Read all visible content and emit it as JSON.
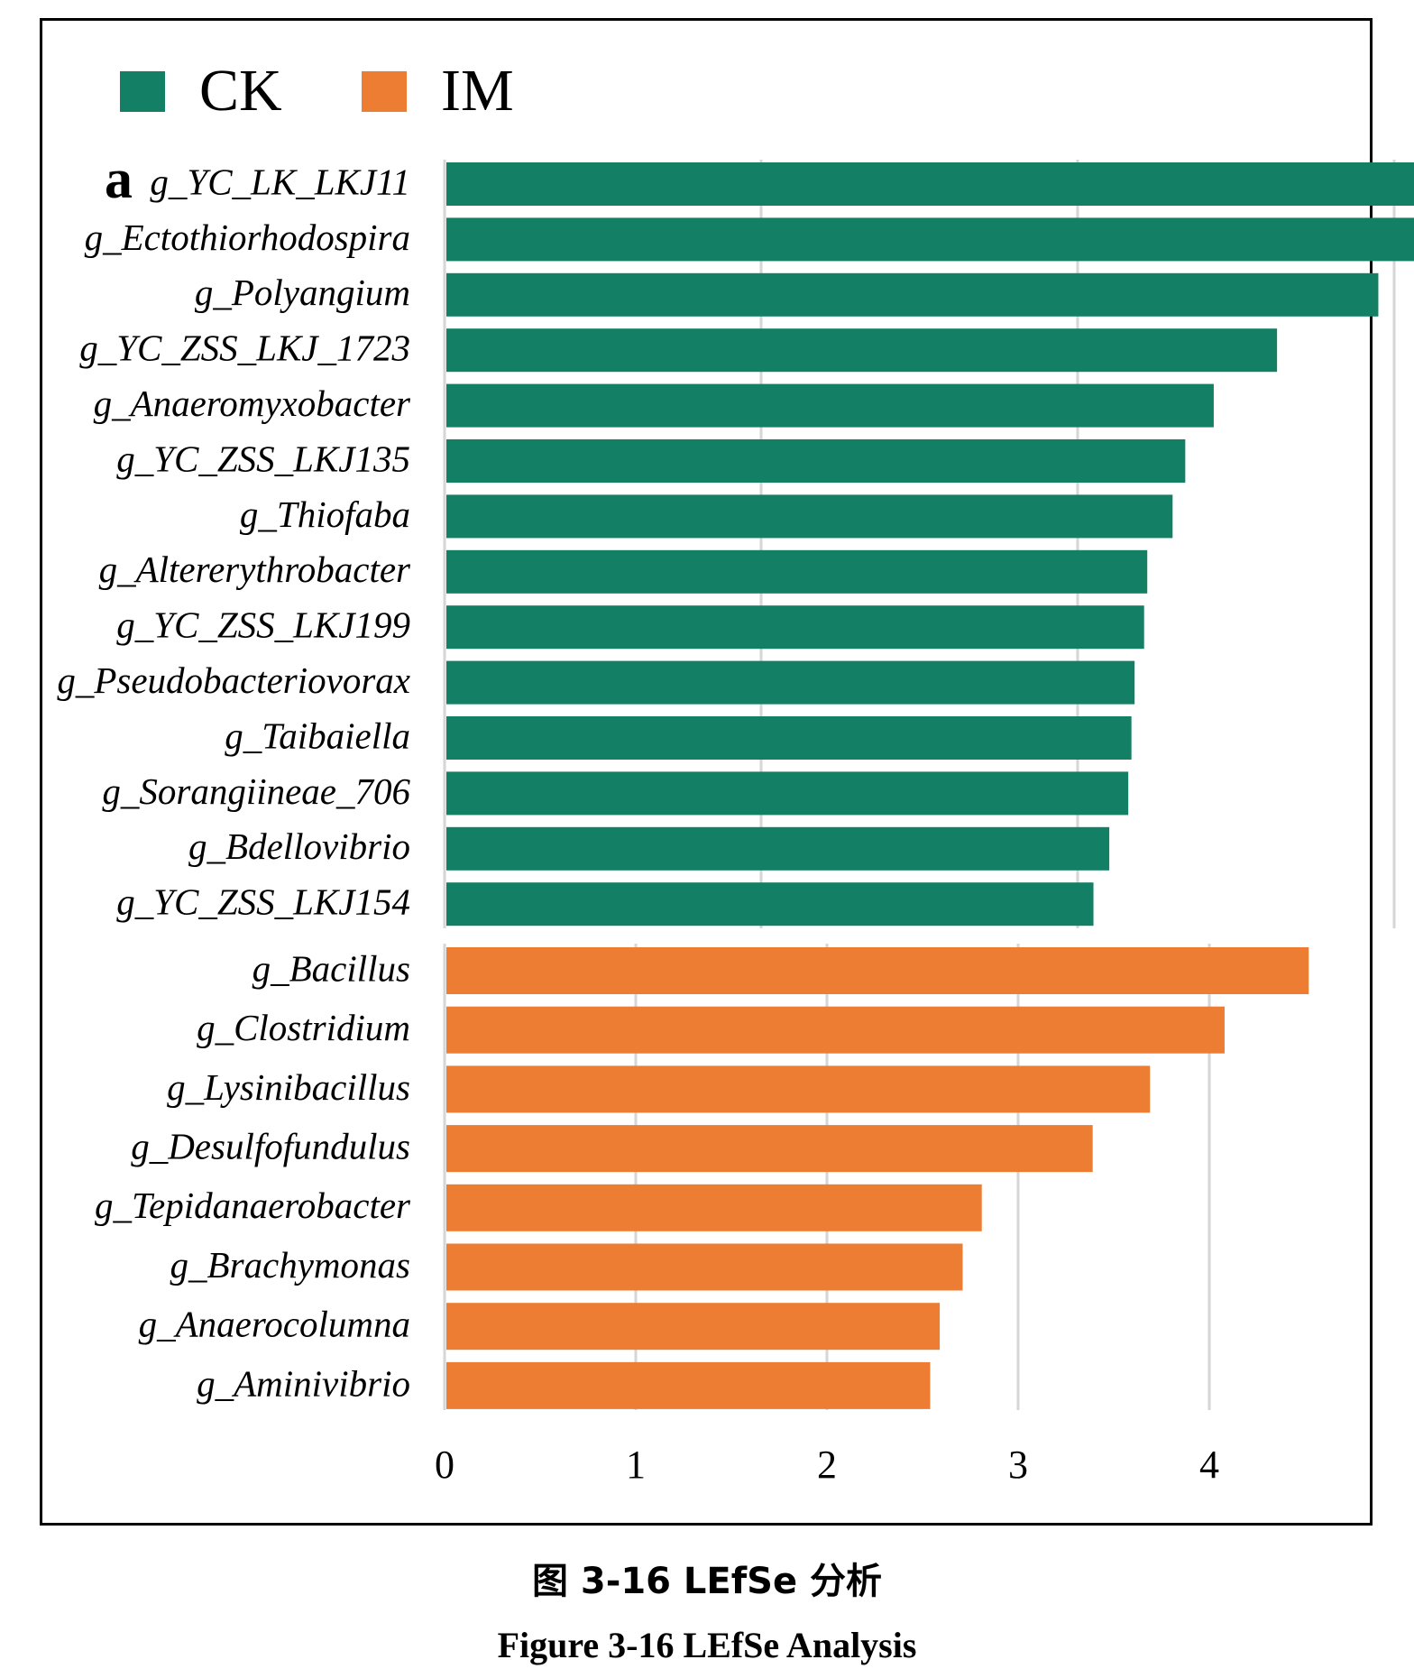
{
  "figure": {
    "panel_label": "a",
    "caption_cn": "图 3-16 LEfSe 分析",
    "caption_en": "Figure 3-16 LEfSe Analysis"
  },
  "legend": [
    {
      "label": "CK",
      "color": "#137f64"
    },
    {
      "label": "IM",
      "color": "#ec7d33"
    }
  ],
  "chart_data": [
    {
      "type": "bar",
      "orientation": "horizontal",
      "group": "CK",
      "color": "#137f64",
      "xlim": [
        0,
        3.3
      ],
      "categories": [
        "g_YC_LK_LKJ11",
        "g_Ectothiorhodospira",
        "g_Polyangium",
        "g_YC_ZSS_LKJ_1723",
        "g_Anaeromyxobacter",
        "g_YC_ZSS_LKJ135",
        "g_Thiofaba",
        "g_Altererythrobacter",
        "g_YC_ZSS_LKJ199",
        "g_Pseudobacteriovorax",
        "g_Taibaiella",
        "g_Sorangiineae_706",
        "g_Bdellovibrio",
        "g_YC_ZSS_LKJ154"
      ],
      "values": [
        3.25,
        3.12,
        2.95,
        2.63,
        2.43,
        2.34,
        2.3,
        2.22,
        2.21,
        2.18,
        2.17,
        2.16,
        2.1,
        2.05
      ]
    },
    {
      "type": "bar",
      "orientation": "horizontal",
      "group": "IM",
      "color": "#ec7d33",
      "xlim": [
        0,
        4.6
      ],
      "x_ticks": [
        "0",
        "1",
        "2",
        "3",
        "4"
      ],
      "categories": [
        "g_Bacillus",
        "g_Clostridium",
        "g_Lysinibacillus",
        "g_Desulfofundulus",
        "g_Tepidanaerobacter",
        "g_Brachymonas",
        "g_Anaerocolumna",
        "g_Aminivibrio"
      ],
      "values": [
        4.52,
        4.08,
        3.69,
        3.39,
        2.81,
        2.71,
        2.59,
        2.54
      ]
    }
  ]
}
